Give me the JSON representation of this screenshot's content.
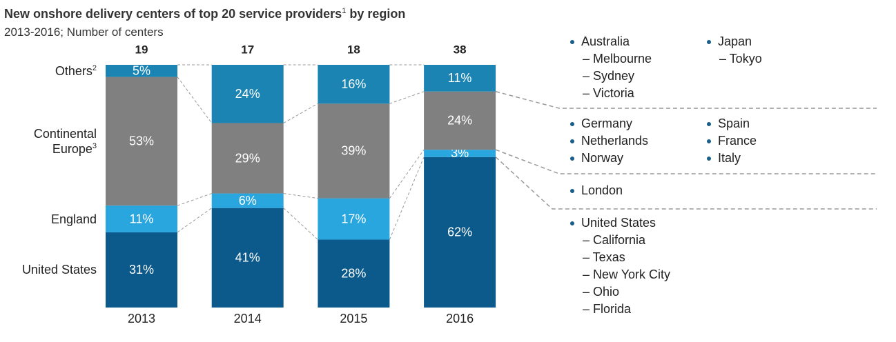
{
  "chart_data": {
    "type": "stacked_bar_100",
    "title": "New onshore delivery centers of top 20 service providers",
    "title_sup": "1",
    "title_end": "by region",
    "subtitle": "2013-2016; Number of centers",
    "categories": [
      "2013",
      "2014",
      "2015",
      "2016"
    ],
    "totals": [
      19,
      17,
      18,
      38
    ],
    "ylim": [
      0,
      100
    ],
    "series": [
      {
        "name": "United States",
        "color": "#0b5a8b",
        "values": [
          31,
          41,
          28,
          62
        ],
        "value_labels": [
          "31%",
          "41%",
          "28%",
          "62%"
        ]
      },
      {
        "name": "England",
        "color": "#2aa6df",
        "values": [
          11,
          6,
          17,
          3
        ],
        "value_labels": [
          "11%",
          "6%",
          "17%",
          "3%"
        ]
      },
      {
        "name": "Continental Europe",
        "name_sup": "3",
        "color": "#808080",
        "values": [
          53,
          29,
          39,
          24
        ],
        "value_labels": [
          "53%",
          "29%",
          "39%",
          "24%"
        ]
      },
      {
        "name": "Others",
        "name_sup": "2",
        "color": "#1b84b2",
        "values": [
          5,
          24,
          16,
          11
        ],
        "value_labels": [
          "5%",
          "24%",
          "16%",
          "11%"
        ]
      }
    ],
    "region_lists": [
      {
        "items": [
          {
            "name": "Australia",
            "subs": [
              "– Melbourne",
              "– Sydney",
              "– Victoria"
            ]
          },
          {
            "name": "Japan",
            "subs": [
              "– Tokyo"
            ]
          }
        ]
      },
      {
        "items": [
          {
            "name": "Germany"
          },
          {
            "name": "Spain"
          },
          {
            "name": "Netherlands"
          },
          {
            "name": "France"
          },
          {
            "name": "Norway"
          },
          {
            "name": "Italy"
          }
        ]
      },
      {
        "items": [
          {
            "name": "London"
          }
        ]
      },
      {
        "items": [
          {
            "name": "United States",
            "subs": [
              "– California",
              "– Texas",
              "– New York City",
              "– Ohio",
              "– Florida"
            ]
          }
        ]
      }
    ]
  }
}
